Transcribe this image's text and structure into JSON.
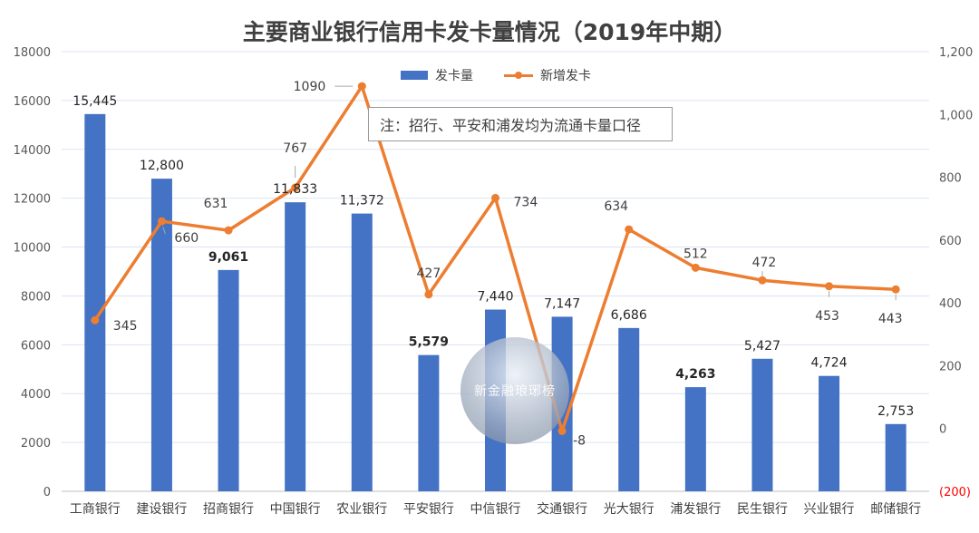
{
  "chart_data": {
    "type": "bar",
    "title": "主要商业银行信用卡发卡量情况（2019年中期）",
    "categories": [
      "工商银行",
      "建设银行",
      "招商银行",
      "中国银行",
      "农业银行",
      "平安银行",
      "中信银行",
      "交通银行",
      "光大银行",
      "浦发银行",
      "民生银行",
      "兴业银行",
      "邮储银行"
    ],
    "series": [
      {
        "name": "发卡量",
        "type": "bar",
        "axis": "left",
        "color": "#4472C4",
        "values": [
          15445,
          12800,
          9061,
          11833,
          11372,
          5579,
          7440,
          7147,
          6686,
          4263,
          5427,
          4724,
          2753
        ],
        "labels": [
          "15,445",
          "12,800",
          "9,061",
          "11,833",
          "11,372",
          "5,579",
          "7,440",
          "7,147",
          "6,686",
          "4,263",
          "5,427",
          "4,724",
          "2,753"
        ],
        "bold_labels": [
          false,
          false,
          true,
          false,
          false,
          true,
          false,
          false,
          false,
          true,
          false,
          false,
          false
        ]
      },
      {
        "name": "新增发卡",
        "type": "line",
        "axis": "right",
        "color": "#ED7D31",
        "values": [
          345,
          660,
          631,
          767,
          1090,
          427,
          734,
          -8,
          634,
          512,
          472,
          453,
          443
        ],
        "labels": [
          "345",
          "660",
          "631",
          "767",
          "1090",
          "427",
          "734",
          "-8",
          "634",
          "512",
          "472",
          "453",
          "443"
        ]
      }
    ],
    "left_axis": {
      "ylim": [
        0,
        18000
      ],
      "ticks": [
        0,
        2000,
        4000,
        6000,
        8000,
        10000,
        12000,
        14000,
        16000,
        18000
      ],
      "tick_labels": [
        "0",
        "2000",
        "4000",
        "6000",
        "8000",
        "10000",
        "12000",
        "14000",
        "16000",
        "18000"
      ]
    },
    "right_axis": {
      "ylim": [
        -200,
        1200
      ],
      "ticks": [
        -200,
        0,
        200,
        400,
        600,
        800,
        1000,
        1200
      ],
      "tick_labels": [
        "(200)",
        "0",
        "200",
        "400",
        "600",
        "800",
        "1,000",
        "1,200"
      ],
      "negative_label_color": "#FF0000"
    },
    "grid": true,
    "legend_position": "top-center",
    "annotation": "注：招行、平安和浦发均为流通卡量口径"
  },
  "watermark_text": "新金融琅琊榜"
}
